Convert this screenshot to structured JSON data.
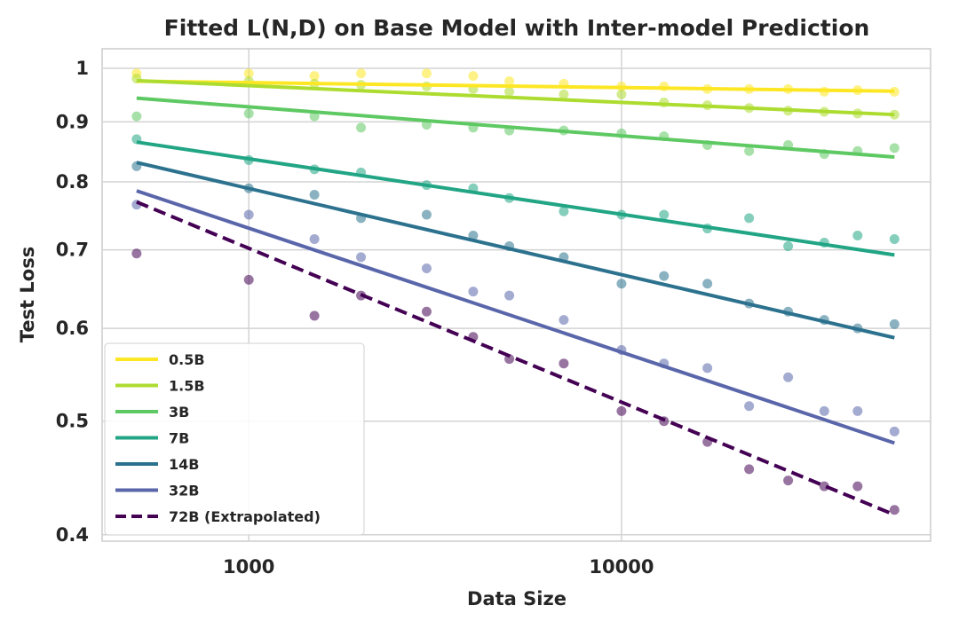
{
  "chart_data": {
    "type": "scatter",
    "title": "Fitted L(N,D) on Base Model with Inter-model Prediction",
    "xlabel": "Data Size",
    "ylabel": "Test Loss",
    "xscale": "log",
    "yscale": "log",
    "xlim": [
      404,
      67500
    ],
    "ylim": [
      0.395,
      1.039
    ],
    "xticks": [
      {
        "value": 1000,
        "label": "1000"
      },
      {
        "value": 10000,
        "label": "10000"
      }
    ],
    "yticks": [
      {
        "value": 1,
        "label": "1"
      },
      {
        "value": 0.9,
        "label": "0.9"
      },
      {
        "value": 0.8,
        "label": "0.8"
      },
      {
        "value": 0.7,
        "label": "0.7"
      },
      {
        "value": 0.6,
        "label": "0.6"
      },
      {
        "value": 0.5,
        "label": "0.5"
      },
      {
        "value": 0.4,
        "label": "0.4"
      }
    ],
    "grid": true,
    "legend_position": "bottom-left",
    "x": [
      500,
      1000,
      1500,
      2000,
      3000,
      4000,
      5000,
      7000,
      10000,
      13000,
      17000,
      22000,
      28000,
      35000,
      43000,
      54000
    ],
    "series": [
      {
        "name": "0.5B",
        "color": "#fde725",
        "dashed": false,
        "fit": [
          0.975,
          0.956
        ],
        "points": [
          0.99,
          0.99,
          0.985,
          0.99,
          0.99,
          0.985,
          0.975,
          0.97,
          0.965,
          0.965,
          0.96,
          0.96,
          0.96,
          0.955,
          0.958,
          0.955
        ]
      },
      {
        "name": "1.5B",
        "color": "#addc30",
        "dashed": false,
        "fit": [
          0.976,
          0.913
        ],
        "points": [
          0.98,
          0.975,
          0.97,
          0.968,
          0.965,
          0.96,
          0.955,
          0.95,
          0.95,
          0.935,
          0.93,
          0.925,
          0.92,
          0.918,
          0.915,
          0.913
        ]
      },
      {
        "name": "3B",
        "color": "#5ec962",
        "dashed": false,
        "fit": [
          0.943,
          0.84
        ],
        "points": [
          0.91,
          0.915,
          0.91,
          0.89,
          0.895,
          0.89,
          0.885,
          0.885,
          0.88,
          0.875,
          0.86,
          0.85,
          0.86,
          0.845,
          0.85,
          0.855
        ]
      },
      {
        "name": "7B",
        "color": "#21a585",
        "dashed": false,
        "fit": [
          0.865,
          0.693
        ],
        "points": [
          0.87,
          0.835,
          0.82,
          0.815,
          0.795,
          0.79,
          0.775,
          0.755,
          0.75,
          0.75,
          0.73,
          0.745,
          0.705,
          0.71,
          0.72,
          0.715
        ]
      },
      {
        "name": "14B",
        "color": "#2c728e",
        "dashed": false,
        "fit": [
          0.831,
          0.589
        ],
        "points": [
          0.825,
          0.79,
          0.78,
          0.745,
          0.75,
          0.72,
          0.705,
          0.69,
          0.655,
          0.665,
          0.655,
          0.63,
          0.62,
          0.61,
          0.6,
          0.605
        ]
      },
      {
        "name": "32B",
        "color": "#5a66aa",
        "dashed": false,
        "fit": [
          0.786,
          0.479
        ],
        "points": [
          0.765,
          0.75,
          0.715,
          0.69,
          0.675,
          0.645,
          0.64,
          0.61,
          0.575,
          0.56,
          0.555,
          0.515,
          0.545,
          0.51,
          0.51,
          0.49
        ]
      },
      {
        "name": "72B (Extrapolated)",
        "color": "#440154",
        "dashed": true,
        "fit": [
          0.769,
          0.416
        ],
        "points": [
          0.695,
          0.66,
          0.615,
          0.64,
          0.62,
          0.59,
          0.565,
          0.56,
          0.51,
          0.5,
          0.48,
          0.455,
          0.445,
          0.44,
          0.44,
          0.42
        ]
      }
    ]
  }
}
